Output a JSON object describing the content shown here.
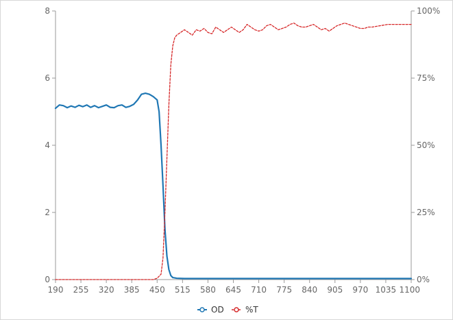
{
  "chart_data": {
    "type": "line",
    "title": "",
    "xlabel": "",
    "ylabel": "",
    "y2label": "",
    "x_ticks": [
      190,
      255,
      320,
      385,
      450,
      515,
      580,
      645,
      710,
      775,
      840,
      905,
      970,
      1035,
      1100
    ],
    "xlim": [
      190,
      1100
    ],
    "ylim": [
      0,
      8
    ],
    "y_ticks": [
      0,
      2,
      4,
      6,
      8
    ],
    "y2lim": [
      0,
      100
    ],
    "y2_ticks": [
      0,
      25,
      50,
      75,
      100
    ],
    "y2_tick_labels": [
      "0%",
      "25%",
      "50%",
      "75%",
      "100%"
    ],
    "grid": false,
    "legend_position": "bottom-center",
    "series": [
      {
        "name": "OD",
        "axis": "left",
        "color": "#1f77b4",
        "style": "solid",
        "x": [
          190,
          200,
          210,
          220,
          230,
          240,
          250,
          260,
          270,
          280,
          290,
          300,
          310,
          320,
          330,
          340,
          350,
          360,
          370,
          380,
          390,
          400,
          410,
          420,
          430,
          440,
          450,
          455,
          460,
          465,
          470,
          475,
          480,
          485,
          490,
          500,
          520,
          560,
          600,
          700,
          800,
          900,
          1000,
          1100
        ],
        "y": [
          5.1,
          5.2,
          5.18,
          5.12,
          5.17,
          5.13,
          5.19,
          5.15,
          5.2,
          5.13,
          5.18,
          5.12,
          5.16,
          5.2,
          5.13,
          5.12,
          5.18,
          5.2,
          5.13,
          5.16,
          5.22,
          5.35,
          5.52,
          5.55,
          5.52,
          5.45,
          5.35,
          5.0,
          4.0,
          2.8,
          1.5,
          0.7,
          0.3,
          0.12,
          0.06,
          0.04,
          0.03,
          0.03,
          0.03,
          0.03,
          0.03,
          0.03,
          0.03,
          0.03
        ]
      },
      {
        "name": "%T",
        "axis": "right",
        "color": "#d62728",
        "style": "dashed",
        "x": [
          190,
          300,
          400,
          440,
          450,
          460,
          465,
          470,
          475,
          480,
          485,
          490,
          495,
          500,
          510,
          520,
          530,
          540,
          550,
          560,
          570,
          580,
          590,
          600,
          610,
          620,
          630,
          640,
          650,
          660,
          670,
          680,
          690,
          700,
          710,
          720,
          730,
          740,
          750,
          760,
          770,
          780,
          790,
          800,
          810,
          820,
          830,
          840,
          850,
          860,
          870,
          880,
          890,
          900,
          910,
          920,
          930,
          940,
          950,
          960,
          970,
          980,
          990,
          1000,
          1020,
          1040,
          1060,
          1080,
          1100
        ],
        "y": [
          0,
          0,
          0,
          0,
          0.5,
          2,
          8,
          25,
          45,
          65,
          80,
          87,
          90,
          91,
          92,
          93,
          92,
          91,
          93,
          92.5,
          93.5,
          92,
          91.5,
          94,
          93,
          92,
          93,
          94,
          93,
          92,
          93,
          95,
          94,
          93,
          92.5,
          93,
          94.5,
          95,
          94,
          93,
          93.5,
          94,
          95,
          95.5,
          94.5,
          94,
          94,
          94.5,
          95,
          94,
          93,
          93.5,
          92.5,
          93.5,
          94.5,
          95,
          95.5,
          95,
          94.5,
          94,
          93.5,
          93.5,
          94,
          94,
          94.5,
          95,
          95,
          95,
          95
        ]
      }
    ]
  },
  "legend": {
    "items": [
      {
        "label": "OD",
        "color": "#1f77b4"
      },
      {
        "label": "%T",
        "color": "#d62728"
      }
    ]
  }
}
